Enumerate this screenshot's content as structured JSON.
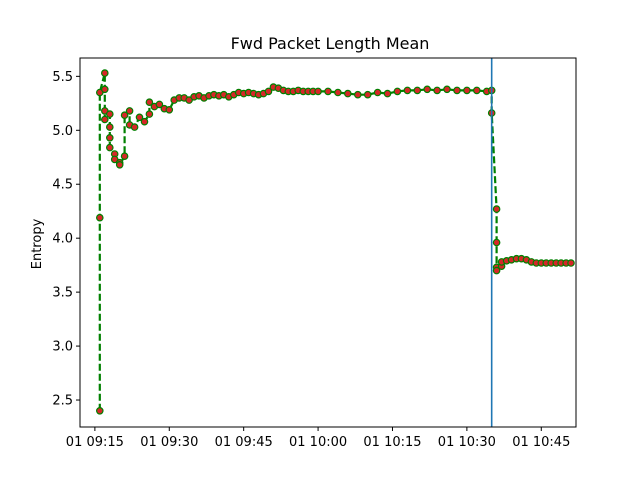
{
  "chart_data": {
    "type": "line",
    "title": "Fwd Packet Length Mean",
    "xlabel": "",
    "ylabel": "Entropy",
    "x_axis": {
      "kind": "time",
      "range": [
        "09:12",
        "10:52"
      ],
      "ticks": [
        {
          "t": "09:15",
          "label": "01 09:15"
        },
        {
          "t": "09:30",
          "label": "01 09:30"
        },
        {
          "t": "09:45",
          "label": "01 09:45"
        },
        {
          "t": "10:00",
          "label": "01 10:00"
        },
        {
          "t": "10:15",
          "label": "01 10:15"
        },
        {
          "t": "10:30",
          "label": "01 10:30"
        },
        {
          "t": "10:45",
          "label": "01 10:45"
        }
      ]
    },
    "y_axis": {
      "range": [
        2.25,
        5.67
      ],
      "ticks": [
        "2.5",
        "3.0",
        "3.5",
        "4.0",
        "4.5",
        "5.0",
        "5.5"
      ]
    },
    "grid": false,
    "vertical_line": {
      "t": "10:35",
      "color": "#1f77b4"
    },
    "style": {
      "line_color": "#008000",
      "line_dash": "dashed",
      "marker_face": "#d62728",
      "marker_edge": "#008000"
    },
    "series": [
      {
        "x": [
          "09:16",
          "09:16",
          "09:16",
          "09:17",
          "09:17",
          "09:17",
          "09:17",
          "09:18",
          "09:18",
          "09:18",
          "09:18",
          "09:19",
          "09:19",
          "09:20",
          "09:20",
          "09:21",
          "09:21",
          "09:22",
          "09:22",
          "09:23",
          "09:24",
          "09:25",
          "09:26",
          "09:26",
          "09:27",
          "09:28",
          "09:29",
          "09:30",
          "09:31",
          "09:32",
          "09:33",
          "09:34",
          "09:35",
          "09:36",
          "09:37",
          "09:38",
          "09:39",
          "09:40",
          "09:41",
          "09:42",
          "09:43",
          "09:44",
          "09:45",
          "09:46",
          "09:47",
          "09:48",
          "09:49",
          "09:50",
          "09:51",
          "09:52",
          "09:53",
          "09:54",
          "09:55",
          "09:56",
          "09:57",
          "09:58",
          "09:59",
          "10:00",
          "10:02",
          "10:04",
          "10:06",
          "10:08",
          "10:10",
          "10:12",
          "10:14",
          "10:16",
          "10:18",
          "10:20",
          "10:22",
          "10:24",
          "10:26",
          "10:28",
          "10:30",
          "10:32",
          "10:34",
          "10:35",
          "10:35",
          "10:36",
          "10:36",
          "10:36",
          "10:36",
          "10:37",
          "10:37",
          "10:38",
          "10:39",
          "10:40",
          "10:41",
          "10:42",
          "10:43",
          "10:44",
          "10:45",
          "10:46",
          "10:47",
          "10:48",
          "10:49",
          "10:50",
          "10:51"
        ],
        "y": [
          2.4,
          4.19,
          5.35,
          5.53,
          5.38,
          5.18,
          5.1,
          5.15,
          5.03,
          4.93,
          4.84,
          4.78,
          4.73,
          4.7,
          4.68,
          4.76,
          5.14,
          5.18,
          5.05,
          5.03,
          5.12,
          5.08,
          5.15,
          5.26,
          5.22,
          5.24,
          5.2,
          5.19,
          5.28,
          5.3,
          5.3,
          5.28,
          5.31,
          5.32,
          5.3,
          5.32,
          5.33,
          5.32,
          5.33,
          5.31,
          5.33,
          5.35,
          5.34,
          5.35,
          5.34,
          5.33,
          5.34,
          5.36,
          5.4,
          5.39,
          5.37,
          5.36,
          5.36,
          5.37,
          5.36,
          5.36,
          5.36,
          5.36,
          5.36,
          5.35,
          5.34,
          5.33,
          5.33,
          5.35,
          5.34,
          5.36,
          5.37,
          5.37,
          5.38,
          5.37,
          5.38,
          5.37,
          5.37,
          5.37,
          5.36,
          5.37,
          5.16,
          4.27,
          3.96,
          3.73,
          3.7,
          3.74,
          3.78,
          3.79,
          3.8,
          3.81,
          3.81,
          3.8,
          3.78,
          3.77,
          3.77,
          3.77,
          3.77,
          3.77,
          3.77,
          3.77,
          3.77
        ]
      }
    ]
  }
}
